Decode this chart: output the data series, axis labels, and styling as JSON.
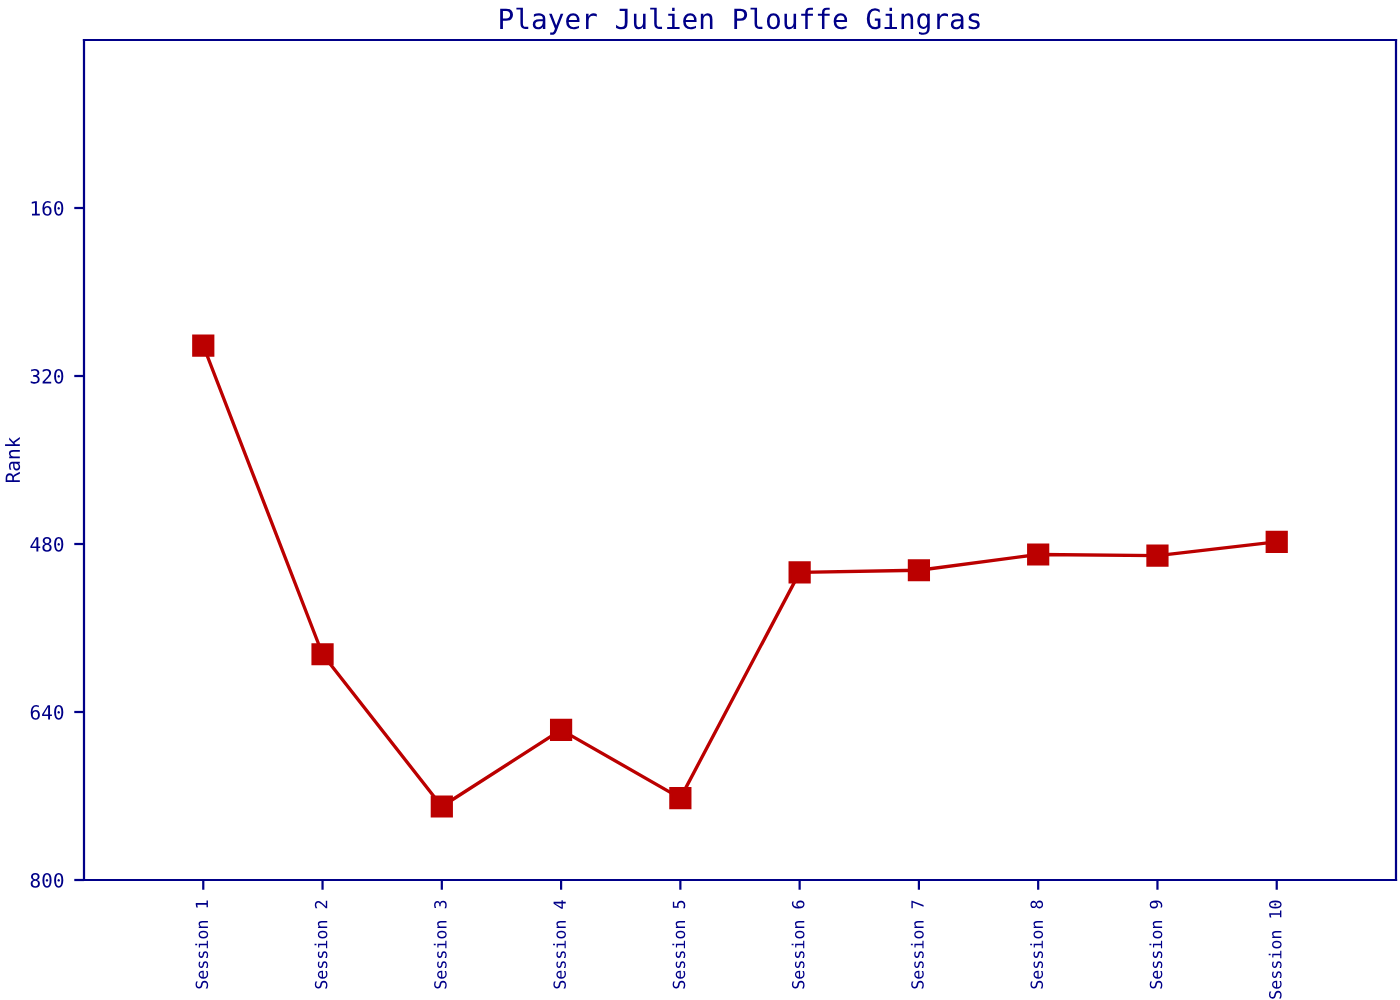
{
  "chart_data": {
    "type": "line",
    "title": "Player Julien Plouffe Gingras",
    "ylabel": "Rank",
    "categories": [
      "Session 1",
      "Session 2",
      "Session 3",
      "Session 4",
      "Session 5",
      "Session 6",
      "Session 7",
      "Session 8",
      "Session 9",
      "Session 10"
    ],
    "series": [
      {
        "color": "#bb0000",
        "values": [
          291,
          585,
          730,
          657,
          722,
          507,
          505,
          490,
          491,
          478
        ]
      }
    ],
    "ylim": [
      800,
      0
    ],
    "yticks": [
      160,
      320,
      480,
      640,
      800
    ],
    "marker": "square",
    "line_style": "solid",
    "grid": false,
    "legend": false
  }
}
